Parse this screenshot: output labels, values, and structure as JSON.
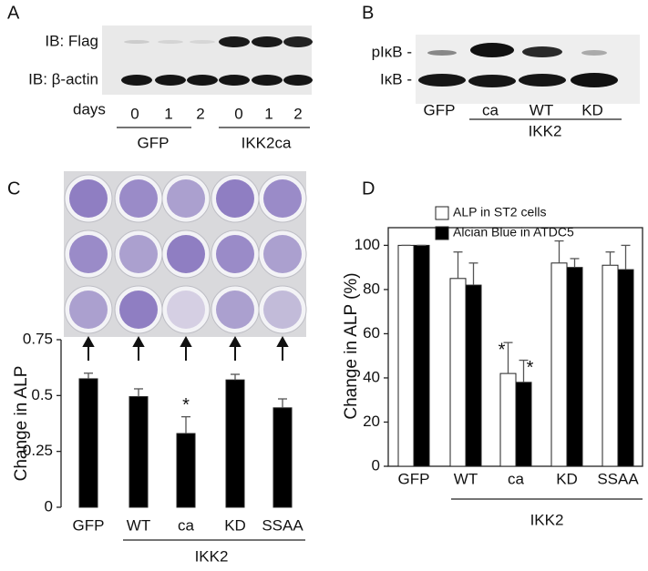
{
  "panel_a": {
    "label": "A",
    "rows": [
      "IB: Flag",
      "IB: β-actin"
    ],
    "days_label": "days",
    "days": [
      0,
      1,
      2,
      0,
      1,
      2
    ],
    "groups": [
      "GFP",
      "IKK2ca"
    ]
  },
  "panel_b": {
    "label": "B",
    "rows": [
      "pIκB -",
      "IκB -"
    ],
    "lanes": [
      "GFP",
      "ca",
      "WT",
      "KD"
    ],
    "group": "IKK2"
  },
  "chart_data": [
    {
      "type": "bar",
      "panel_label": "C",
      "ylabel": "Change in ALP",
      "categories": [
        "GFP",
        "WT",
        "ca",
        "KD",
        "SSAA"
      ],
      "values": [
        0.575,
        0.495,
        0.33,
        0.57,
        0.445
      ],
      "errors": [
        0.025,
        0.035,
        0.075,
        0.025,
        0.04
      ],
      "color": "#000000",
      "ylim": [
        0,
        0.75
      ],
      "yticks": [
        0,
        0.25,
        0.5,
        0.75
      ],
      "group_label": "IKK2",
      "annotations": [
        "*"
      ],
      "frame": false
    },
    {
      "type": "bar",
      "panel_label": "D",
      "ylabel": "Change in ALP (%)",
      "categories": [
        "GFP",
        "WT",
        "ca",
        "KD",
        "SSAA"
      ],
      "series": [
        {
          "name": "ALP in ST2 cells",
          "color": "#ffffff",
          "values": [
            100,
            85,
            42,
            92,
            91
          ],
          "errors": [
            0,
            12,
            14,
            10,
            6
          ]
        },
        {
          "name": "Alcian Blue in ATDC5",
          "color": "#000000",
          "values": [
            100,
            82,
            38,
            90,
            89
          ],
          "errors": [
            0,
            10,
            10,
            4,
            11
          ]
        }
      ],
      "ylim": [
        0,
        108
      ],
      "yticks": [
        0,
        20,
        40,
        60,
        80,
        100
      ],
      "group_label": "IKK2",
      "annotations": [
        "*",
        "*"
      ],
      "frame": true
    }
  ]
}
